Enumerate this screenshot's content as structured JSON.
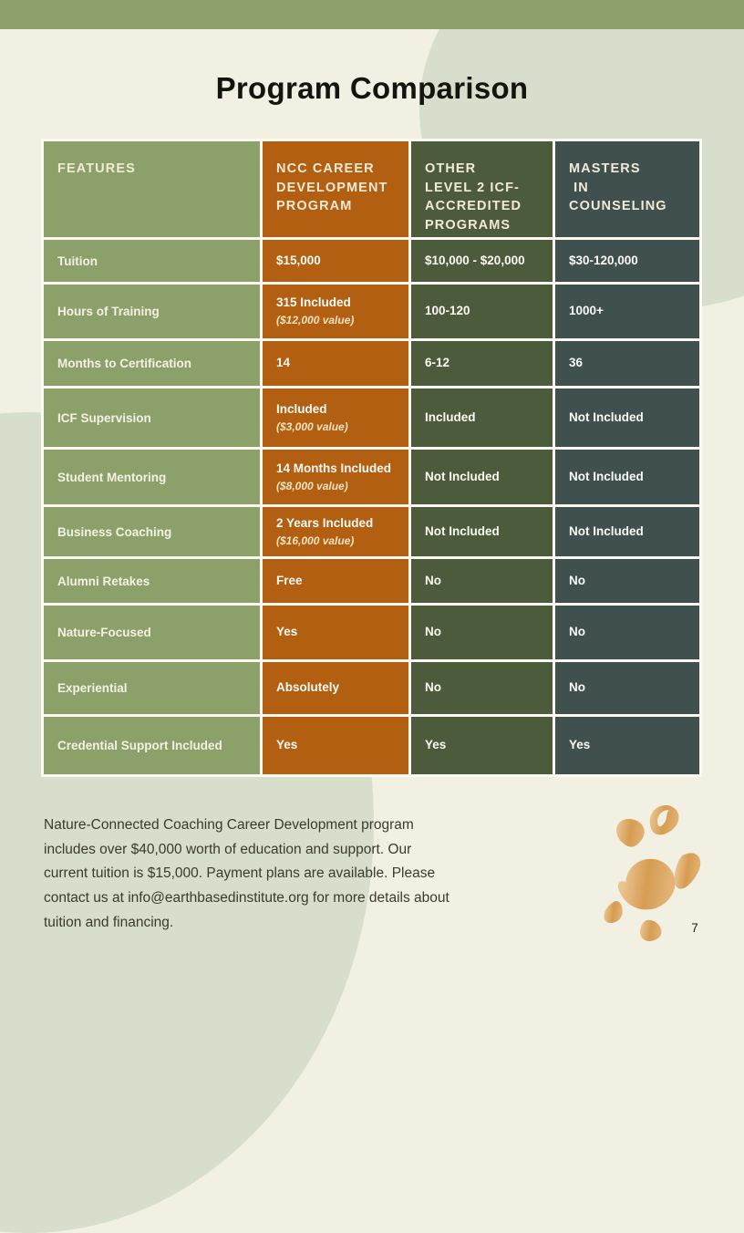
{
  "page": {
    "title": "Program Comparison",
    "page_number": "7",
    "footer_text": "Nature-Connected Coaching Career Development program includes over $40,000 worth of education and support. Our current tuition is $15,000. Payment plans are available. Please contact us at info@earthbasedinstitute.org for more details about tuition and financing."
  },
  "colors": {
    "top_bar": "#8ba169",
    "page_background": "#f2f0e3",
    "background_blob": "#d7decb",
    "features_column": "#8ba169",
    "ncc_column": "#b25f12",
    "other_column": "#4c5b3b",
    "masters_column": "#3f504e",
    "table_gap": "#fbfaf2",
    "header_text": "#f3ead6",
    "cell_text": "#fbfaf4",
    "turtle": "#d69c52"
  },
  "icons": {
    "turtle": "turtle-spiral-icon"
  },
  "table": {
    "columns": [
      {
        "key": "features",
        "label": "FEATURES",
        "color": "#8ba169"
      },
      {
        "key": "ncc",
        "label": "NCC CAREER\nDEVELOPMENT\nPROGRAM",
        "color": "#b25f12"
      },
      {
        "key": "other",
        "label": "OTHER\nLEVEL 2 ICF-\nACCREDITED\nPROGRAMS",
        "color": "#4c5b3b"
      },
      {
        "key": "masters",
        "label": "MASTERS\n IN\nCOUNSELING",
        "color": "#3f504e"
      }
    ],
    "rows": [
      {
        "feature": "Tuition",
        "ncc": "$15,000",
        "ncc_note": "",
        "other": "$10,000 - $20,000",
        "masters": "$30-120,000"
      },
      {
        "feature": "Hours of Training",
        "ncc": "315 Included",
        "ncc_note": "($12,000 value)",
        "other": "100-120",
        "masters": "1000+"
      },
      {
        "feature": "Months to Certification",
        "ncc": "14",
        "ncc_note": "",
        "other": "6-12",
        "masters": "36"
      },
      {
        "feature": "ICF Supervision",
        "ncc": "Included",
        "ncc_note": "($3,000 value)",
        "other": "Included",
        "masters": "Not Included"
      },
      {
        "feature": "Student Mentoring",
        "ncc": "14 Months Included",
        "ncc_note": "($8,000 value)",
        "other": "Not Included",
        "masters": "Not Included"
      },
      {
        "feature": "Business Coaching",
        "ncc": "2 Years Included",
        "ncc_note": "($16,000 value)",
        "other": "Not Included",
        "masters": "Not Included"
      },
      {
        "feature": "Alumni Retakes",
        "ncc": "Free",
        "ncc_note": "",
        "other": "No",
        "masters": "No"
      },
      {
        "feature": "Nature-Focused",
        "ncc": "Yes",
        "ncc_note": "",
        "other": "No",
        "masters": "No"
      },
      {
        "feature": "Experiential",
        "ncc": "Absolutely",
        "ncc_note": "",
        "other": "No",
        "masters": "No"
      },
      {
        "feature": "Credential Support Included",
        "ncc": "Yes",
        "ncc_note": "",
        "other": "Yes",
        "masters": "Yes"
      }
    ]
  }
}
